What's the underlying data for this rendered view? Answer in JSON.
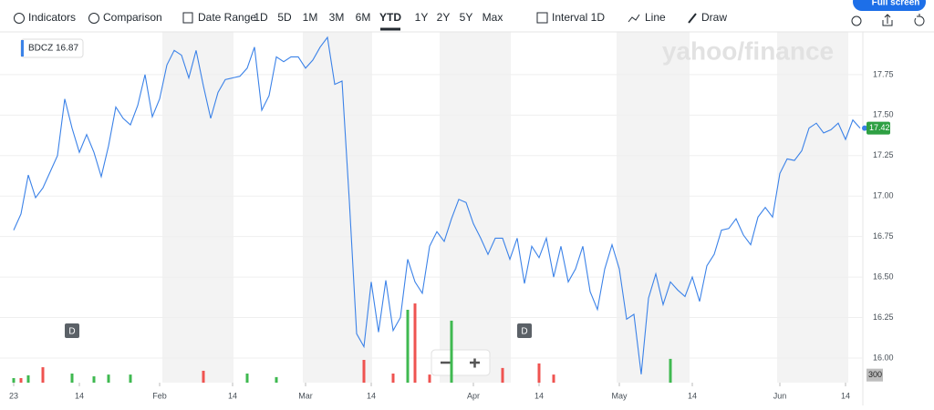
{
  "toolbar": {
    "indicators": "Indicators",
    "comparison": "Comparison",
    "date_range": "Date Range",
    "ranges": [
      "1D",
      "5D",
      "1M",
      "3M",
      "6M",
      "YTD",
      "1Y",
      "2Y",
      "5Y",
      "Max"
    ],
    "active_range": "YTD",
    "interval": "Interval 1D",
    "line": "Line",
    "draw": "Draw",
    "full_screen": "Full screen"
  },
  "watermark": "yahoo/finance",
  "chart_data": {
    "type": "line",
    "series": [
      {
        "name": "BDCZ",
        "color": "#3b82e8",
        "values": [
          16.79,
          16.89,
          17.13,
          16.99,
          17.05,
          17.15,
          17.25,
          17.6,
          17.42,
          17.27,
          17.38,
          17.27,
          17.12,
          17.31,
          17.55,
          17.48,
          17.44,
          17.56,
          17.75,
          17.49,
          17.6,
          17.81,
          17.9,
          17.87,
          17.73,
          17.9,
          17.68,
          17.48,
          17.64,
          17.72,
          17.73,
          17.74,
          17.79,
          17.92,
          17.53,
          17.62,
          17.86,
          17.83,
          17.86,
          17.86,
          17.79,
          17.84,
          17.92,
          17.98,
          17.69,
          17.71,
          16.97,
          16.15,
          16.07,
          16.47,
          16.16,
          16.48,
          16.17,
          16.25,
          16.61,
          16.47,
          16.4,
          16.69,
          16.78,
          16.72,
          16.86,
          16.98,
          16.96,
          16.83,
          16.74,
          16.64,
          16.74,
          16.74,
          16.61,
          16.74,
          16.46,
          16.69,
          16.62,
          16.74,
          16.5,
          16.69,
          16.47,
          16.55,
          16.69,
          16.41,
          16.3,
          16.55,
          16.7,
          16.55,
          16.24,
          16.27,
          15.9,
          16.37,
          16.52,
          16.33,
          16.47,
          16.42,
          16.38,
          16.5,
          16.35,
          16.57,
          16.64,
          16.79,
          16.8,
          16.86,
          16.76,
          16.7,
          16.87,
          16.93,
          16.87,
          17.14,
          17.23,
          17.22,
          17.28,
          17.42,
          17.45,
          17.39,
          17.41,
          17.45,
          17.35,
          17.47,
          17.42
        ]
      }
    ],
    "legend_value": 16.87,
    "last_price": {
      "value": 17.42,
      "label": "17.42"
    },
    "xlim": [
      -1.875,
      116.375
    ],
    "xticks": [
      {
        "value": 0,
        "label": "23"
      },
      {
        "value": 9,
        "label": "14"
      },
      {
        "value": 20,
        "label": "Feb"
      },
      {
        "value": 30,
        "label": "14"
      },
      {
        "value": 40,
        "label": "Mar"
      },
      {
        "value": 49,
        "label": "14"
      },
      {
        "value": 63,
        "label": "Apr"
      },
      {
        "value": 72,
        "label": "14"
      },
      {
        "value": 83,
        "label": "May"
      },
      {
        "value": 93,
        "label": "14"
      },
      {
        "value": 105,
        "label": "Jun"
      },
      {
        "value": 114,
        "label": "14"
      }
    ],
    "ylim": [
      15.848,
      18.014
    ],
    "yticks": [
      {
        "value": 16,
        "label": "16.00"
      },
      {
        "value": 16.25,
        "label": "16.25"
      },
      {
        "value": 16.5,
        "label": "16.50"
      },
      {
        "value": 16.75,
        "label": "16.75"
      },
      {
        "value": 17,
        "label": "17.00"
      },
      {
        "value": 17.25,
        "label": "17.25"
      },
      {
        "value": 17.5,
        "label": "17.50"
      },
      {
        "value": 17.75,
        "label": "17.75"
      }
    ],
    "volume": {
      "x": [
        0,
        1,
        2,
        4,
        8,
        11,
        13,
        16,
        26,
        32,
        36,
        48,
        52,
        54,
        55,
        57,
        60,
        67,
        72,
        74,
        90
      ],
      "values": [
        180,
        180,
        290,
        610,
        360,
        250,
        320,
        320,
        470,
        360,
        220,
        900,
        360,
        2880,
        3130,
        320,
        2450,
        580,
        760,
        320,
        940
      ],
      "colors": [
        "#3fb950",
        "#ef5350",
        "#3fb950",
        "#ef5350",
        "#3fb950",
        "#3fb950",
        "#3fb950",
        "#3fb950",
        "#ef5350",
        "#3fb950",
        "#3fb950",
        "#ef5350",
        "#ef5350",
        "#3fb950",
        "#ef5350",
        "#ef5350",
        "#3fb950",
        "#ef5350",
        "#ef5350",
        "#ef5350",
        "#3fb950"
      ],
      "lim": [
        0,
        3600
      ],
      "ticks": [
        300
      ]
    },
    "dividends": {
      "x": [
        8,
        70
      ],
      "label": "D"
    }
  }
}
